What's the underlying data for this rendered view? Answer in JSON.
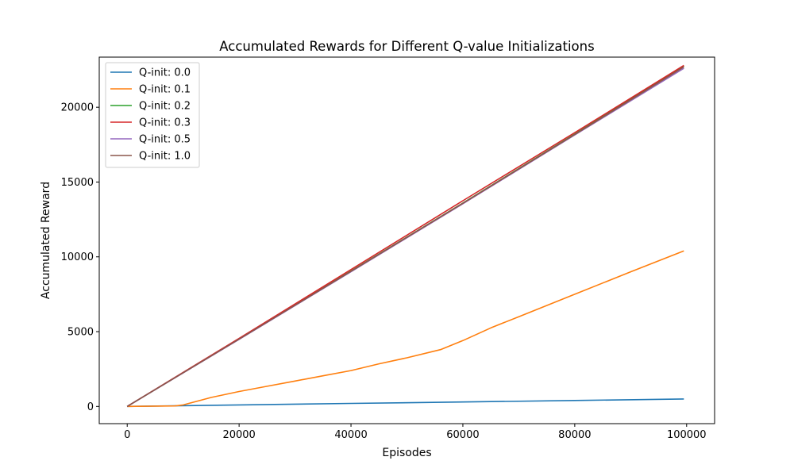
{
  "chart_data": {
    "type": "line",
    "title": "Accumulated Rewards for Different Q-value Initializations",
    "xlabel": "Episodes",
    "ylabel": "Accumulated Reward",
    "xlim": [
      -5000,
      105000
    ],
    "ylim": [
      -1150,
      23350
    ],
    "xticks": [
      0,
      20000,
      40000,
      60000,
      80000,
      100000
    ],
    "xtick_labels": [
      "0",
      "20000",
      "40000",
      "60000",
      "80000",
      "100000"
    ],
    "yticks": [
      0,
      5000,
      10000,
      15000,
      20000
    ],
    "ytick_labels": [
      "0",
      "5000",
      "10000",
      "15000",
      "20000"
    ],
    "grid": false,
    "legend_position": "top-left",
    "series": [
      {
        "name": "Q-init: 0.0",
        "color": "#1f77b4",
        "x": [
          0,
          20000,
          40000,
          60000,
          80000,
          99500
        ],
        "y": [
          0,
          100,
          200,
          300,
          400,
          500
        ]
      },
      {
        "name": "Q-init: 0.1",
        "color": "#ff7f0e",
        "x": [
          0,
          8500,
          10000,
          15000,
          20000,
          25000,
          30000,
          35000,
          40000,
          45000,
          50000,
          56000,
          60000,
          65000,
          70000,
          80000,
          90000,
          99500
        ],
        "y": [
          0,
          30,
          100,
          600,
          1000,
          1350,
          1700,
          2050,
          2400,
          2850,
          3250,
          3800,
          4400,
          5250,
          6000,
          7500,
          9000,
          10400
        ]
      },
      {
        "name": "Q-init: 0.2",
        "color": "#2ca02c",
        "x": [
          0,
          20000,
          40000,
          60000,
          80000,
          99500
        ],
        "y": [
          0,
          4500,
          9050,
          13600,
          18200,
          22750
        ]
      },
      {
        "name": "Q-init: 0.3",
        "color": "#d62728",
        "x": [
          0,
          20000,
          40000,
          60000,
          80000,
          99500
        ],
        "y": [
          0,
          4550,
          9150,
          13750,
          18300,
          22800
        ]
      },
      {
        "name": "Q-init: 0.5",
        "color": "#9467bd",
        "x": [
          0,
          20000,
          40000,
          60000,
          80000,
          99500
        ],
        "y": [
          0,
          4480,
          9000,
          13550,
          18150,
          22600
        ]
      },
      {
        "name": "Q-init: 1.0",
        "color": "#8c564b",
        "x": [
          0,
          20000,
          40000,
          60000,
          80000,
          99500
        ],
        "y": [
          0,
          4500,
          9030,
          13580,
          18180,
          22700
        ]
      }
    ]
  }
}
